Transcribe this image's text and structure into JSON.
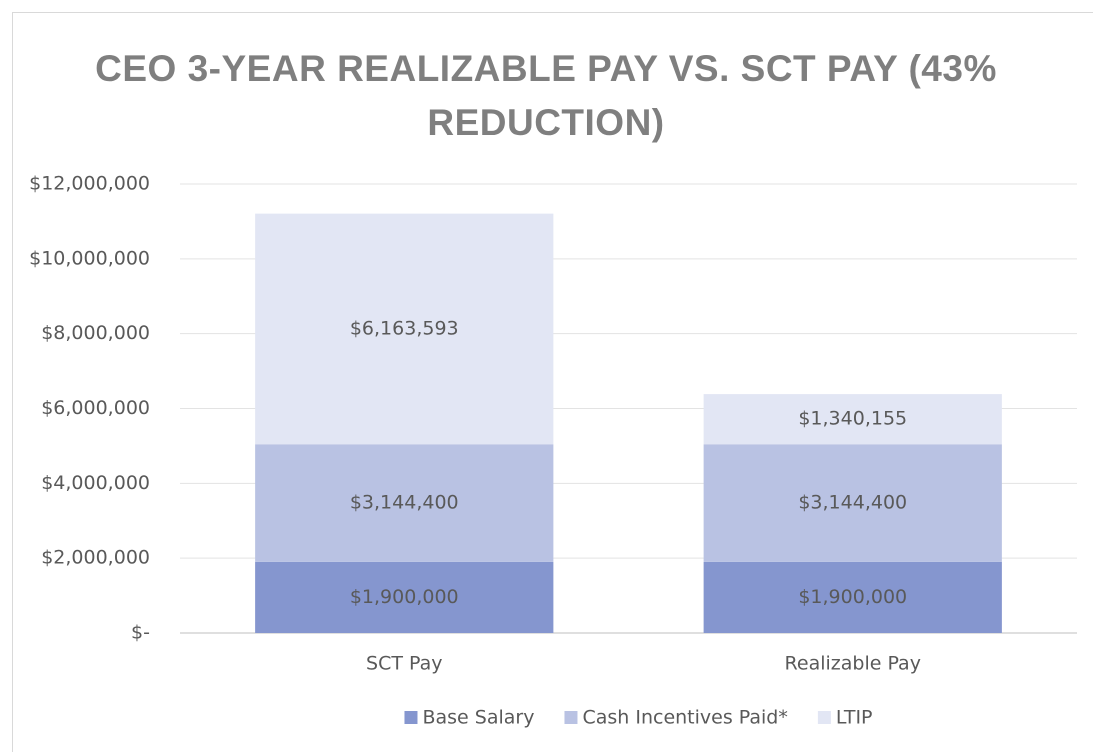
{
  "chart_data": {
    "type": "stacked_bar",
    "title": "CEO 3-YEAR REALIZABLE PAY VS. SCT PAY (43% REDUCTION)",
    "categories": [
      "SCT Pay",
      "Realizable Pay"
    ],
    "series": [
      {
        "name": "Base Salary",
        "color": "#8596cf",
        "values": [
          1900000,
          1900000
        ],
        "value_labels": [
          "$1,900,000",
          "$1,900,000"
        ]
      },
      {
        "name": "Cash Incentives Paid*",
        "color": "#b9c2e3",
        "values": [
          3144400,
          3144400
        ],
        "value_labels": [
          "$3,144,400",
          "$3,144,400"
        ]
      },
      {
        "name": "LTIP",
        "color": "#e2e6f4",
        "values": [
          6163593,
          1340155
        ],
        "value_labels": [
          "$6,163,593",
          "$1,340,155"
        ]
      }
    ],
    "ylim": [
      0,
      12000000
    ],
    "yticks": [
      {
        "value": 0,
        "label": "$-"
      },
      {
        "value": 2000000,
        "label": "$2,000,000"
      },
      {
        "value": 4000000,
        "label": "$4,000,000"
      },
      {
        "value": 6000000,
        "label": "$6,000,000"
      },
      {
        "value": 8000000,
        "label": "$8,000,000"
      },
      {
        "value": 10000000,
        "label": "$10,000,000"
      },
      {
        "value": 12000000,
        "label": "$12,000,000"
      }
    ],
    "grid": true,
    "legend": "bottom"
  }
}
